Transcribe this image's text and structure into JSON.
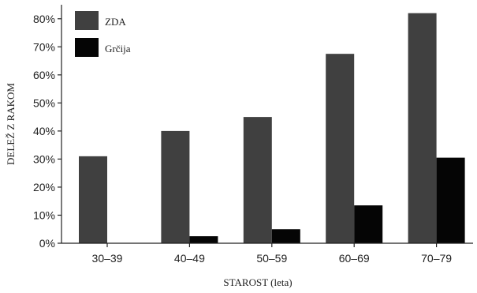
{
  "chart_data": {
    "type": "bar",
    "categories": [
      "30–39",
      "40–49",
      "50–59",
      "60–69",
      "70–79"
    ],
    "series": [
      {
        "name": "ZDA",
        "values": [
          31,
          40,
          45,
          67.5,
          82
        ],
        "color": "#404040"
      },
      {
        "name": "Grčija",
        "values": [
          0,
          2.5,
          5,
          13.5,
          30.5
        ],
        "color": "#050505"
      }
    ],
    "yticks": [
      "0%",
      "10%",
      "20%",
      "30%",
      "40%",
      "50%",
      "60%",
      "70%",
      "80%"
    ],
    "ylim": [
      0,
      85
    ],
    "xlabel": "STAROST (leta)",
    "ylabel": "DELEŽ Z RAKOM",
    "title": "",
    "legend_position": "top-left",
    "grid": false
  }
}
